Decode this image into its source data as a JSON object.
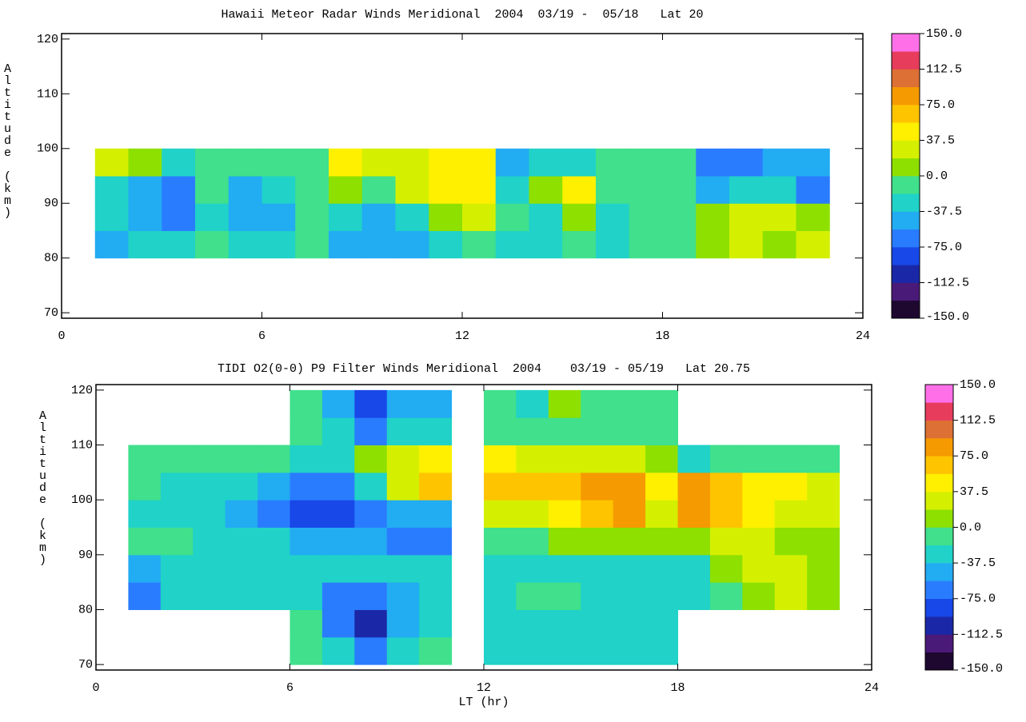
{
  "chart_data": [
    {
      "type": "heatmap",
      "title": "Hawaii Meteor Radar Winds Meridional  2004  03/19 -  05/18   Lat 20",
      "ylabel": "Altitude (km)",
      "xlim": [
        0,
        24
      ],
      "xticks": [
        0,
        6,
        12,
        18,
        24
      ],
      "ylim": [
        69,
        121
      ],
      "yticks": [
        70,
        80,
        90,
        100,
        110,
        120
      ],
      "x": [
        1.5,
        2.5,
        3.5,
        4.5,
        5.5,
        6.5,
        7.5,
        8.5,
        9.5,
        10.5,
        11.5,
        12.5,
        13.5,
        14.5,
        15.5,
        16.5,
        17.5,
        18.5,
        19.5,
        20.5,
        21.5,
        22.5
      ],
      "y": [
        82.5,
        87.5,
        92.5,
        97.5
      ],
      "z": [
        [
          -40,
          -30,
          -30,
          -10,
          -30,
          -30,
          -10,
          -40,
          -50,
          -50,
          -20,
          -10,
          -30,
          -20,
          -10,
          -20,
          -10,
          -10,
          10,
          20,
          10,
          20
        ],
        [
          -30,
          -50,
          -60,
          -20,
          -50,
          -40,
          -10,
          -30,
          -40,
          -30,
          10,
          30,
          -10,
          -20,
          10,
          -20,
          -10,
          -10,
          10,
          20,
          20,
          10
        ],
        [
          -20,
          -50,
          -60,
          -10,
          -40,
          -30,
          -10,
          10,
          -10,
          20,
          50,
          50,
          -20,
          10,
          40,
          -10,
          -10,
          -10,
          -40,
          -20,
          -30,
          -60
        ],
        [
          20,
          10,
          -20,
          -10,
          -10,
          -10,
          -10,
          40,
          20,
          30,
          40,
          50,
          -40,
          -20,
          -30,
          -10,
          -10,
          -10,
          -60,
          -60,
          -50,
          -50
        ]
      ],
      "colorbar": {
        "levels": [
          -150,
          -131.25,
          -112.5,
          -93.75,
          -75,
          -56.25,
          -37.5,
          -18.75,
          0,
          18.75,
          37.5,
          56.25,
          75,
          93.75,
          112.5,
          131.25,
          150
        ],
        "colors": [
          "#1e0830",
          "#4a1a78",
          "#1a28a8",
          "#1848e8",
          "#2a7cff",
          "#22acf2",
          "#20d2c8",
          "#40e08c",
          "#8ee000",
          "#d4f000",
          "#fff000",
          "#ffc400",
          "#f59a00",
          "#dd7034",
          "#e83c5c",
          "#ff70e8"
        ],
        "ticks": [
          {
            "value": 150,
            "label": "150.0"
          },
          112.5,
          {
            "value": 75,
            "label": "75.0"
          },
          37.5,
          {
            "value": 0,
            "label": "0.0"
          },
          -37.5,
          {
            "value": -75,
            "label": "-75.0"
          },
          -112.5,
          {
            "value": -150,
            "label": "-150.0"
          }
        ]
      }
    },
    {
      "type": "heatmap",
      "title": "TIDI O2(0-0) P9 Filter Winds Meridional  2004    03/19 - 05/19   Lat 20.75",
      "ylabel": "Altitude (km)",
      "xlabel": "LT (hr)",
      "xlim": [
        0,
        24
      ],
      "xticks": [
        0,
        6,
        12,
        18,
        24
      ],
      "ylim": [
        69,
        121
      ],
      "yticks": [
        70,
        80,
        90,
        100,
        110,
        120
      ],
      "x": [
        0.5,
        1.5,
        2.5,
        3.5,
        4.5,
        5.5,
        6.5,
        7.5,
        8.5,
        9.5,
        10.5,
        11.5,
        12.5,
        13.5,
        14.5,
        15.5,
        16.5,
        17.5,
        18.5,
        19.5,
        20.5,
        21.5,
        22.5,
        23.5
      ],
      "y": [
        72.5,
        77.5,
        82.5,
        87.5,
        92.5,
        97.5,
        102.5,
        107.5,
        112.5,
        117.5
      ],
      "z": [
        [
          null,
          null,
          null,
          null,
          null,
          null,
          -10,
          -20,
          -60,
          -20,
          -10,
          null,
          -20,
          -20,
          -20,
          -20,
          -20,
          -20,
          null,
          null,
          null,
          null,
          null,
          null
        ],
        [
          null,
          null,
          null,
          null,
          null,
          null,
          -10,
          -60,
          -110,
          -40,
          -20,
          null,
          -20,
          -20,
          -20,
          -20,
          -20,
          -20,
          null,
          null,
          null,
          null,
          null,
          null
        ],
        [
          null,
          -70,
          -30,
          -20,
          -20,
          -20,
          -30,
          -70,
          -60,
          -40,
          -30,
          null,
          -20,
          -10,
          -10,
          -20,
          -20,
          -20,
          -20,
          -10,
          10,
          20,
          10,
          null
        ],
        [
          null,
          -50,
          -20,
          -20,
          -20,
          -30,
          -20,
          -30,
          -20,
          -20,
          -30,
          null,
          -20,
          -30,
          -20,
          -30,
          -20,
          -30,
          -20,
          0,
          20,
          20,
          10,
          null
        ],
        [
          null,
          -10,
          -10,
          -20,
          -20,
          -30,
          -40,
          -40,
          -50,
          -60,
          -60,
          null,
          -10,
          -10,
          0,
          10,
          10,
          0,
          10,
          20,
          20,
          10,
          0,
          null
        ],
        [
          null,
          -20,
          -20,
          -30,
          -40,
          -60,
          -90,
          -90,
          -70,
          -50,
          -40,
          null,
          20,
          30,
          40,
          60,
          80,
          20,
          80,
          60,
          40,
          30,
          20,
          null
        ],
        [
          null,
          -10,
          -20,
          -20,
          -30,
          -40,
          -70,
          -60,
          -30,
          20,
          60,
          null,
          60,
          60,
          70,
          80,
          90,
          40,
          80,
          70,
          50,
          40,
          30,
          null
        ],
        [
          null,
          -10,
          -10,
          -10,
          -10,
          -10,
          -20,
          -20,
          0,
          30,
          40,
          null,
          40,
          30,
          20,
          20,
          20,
          0,
          -20,
          -10,
          -10,
          -10,
          -10,
          null
        ],
        [
          null,
          null,
          null,
          null,
          null,
          null,
          -10,
          -30,
          -60,
          -30,
          -20,
          null,
          -10,
          -10,
          -10,
          -10,
          -10,
          -10,
          null,
          null,
          null,
          null,
          null,
          null
        ],
        [
          null,
          null,
          null,
          null,
          null,
          null,
          -10,
          -40,
          -80,
          -50,
          -40,
          null,
          -10,
          -20,
          0,
          -10,
          -10,
          -10,
          null,
          null,
          null,
          null,
          null,
          null
        ]
      ],
      "colorbar": {
        "levels": [
          -150,
          -131.25,
          -112.5,
          -93.75,
          -75,
          -56.25,
          -37.5,
          -18.75,
          0,
          18.75,
          37.5,
          56.25,
          75,
          93.75,
          112.5,
          131.25,
          150
        ],
        "colors": [
          "#1e0830",
          "#4a1a78",
          "#1a28a8",
          "#1848e8",
          "#2a7cff",
          "#22acf2",
          "#20d2c8",
          "#40e08c",
          "#8ee000",
          "#d4f000",
          "#fff000",
          "#ffc400",
          "#f59a00",
          "#dd7034",
          "#e83c5c",
          "#ff70e8"
        ],
        "ticks": [
          {
            "value": 150,
            "label": "150.0"
          },
          112.5,
          {
            "value": 75,
            "label": "75.0"
          },
          37.5,
          {
            "value": 0,
            "label": "0.0"
          },
          -37.5,
          {
            "value": -75,
            "label": "-75.0"
          },
          -112.5,
          {
            "value": -150,
            "label": "-150.0"
          }
        ]
      }
    }
  ]
}
